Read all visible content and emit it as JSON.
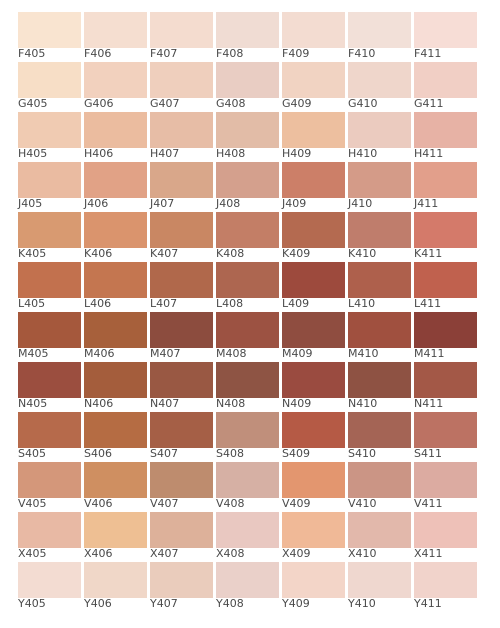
{
  "chart_rows": [
    {
      "row": "F",
      "swatches": [
        {
          "code": "F405",
          "color": "#f9e4d0"
        },
        {
          "code": "F406",
          "color": "#f5ded0"
        },
        {
          "code": "F407",
          "color": "#f4dccf"
        },
        {
          "code": "F408",
          "color": "#f0dcd3"
        },
        {
          "code": "F409",
          "color": "#f3dcd1"
        },
        {
          "code": "F410",
          "color": "#f2e0d8"
        },
        {
          "code": "F411",
          "color": "#f7ddd6"
        }
      ]
    },
    {
      "row": "G",
      "swatches": [
        {
          "code": "G405",
          "color": "#f7dec6"
        },
        {
          "code": "G406",
          "color": "#f2d1be"
        },
        {
          "code": "G407",
          "color": "#efcfbd"
        },
        {
          "code": "G408",
          "color": "#e9cdc3"
        },
        {
          "code": "G409",
          "color": "#f1d3c2"
        },
        {
          "code": "G410",
          "color": "#efd6cb"
        },
        {
          "code": "G411",
          "color": "#f1cfc5"
        }
      ]
    },
    {
      "row": "H",
      "swatches": [
        {
          "code": "H405",
          "color": "#f0cbb2"
        },
        {
          "code": "H406",
          "color": "#ebbc9f"
        },
        {
          "code": "H407",
          "color": "#e7bda6"
        },
        {
          "code": "H408",
          "color": "#e2bca7"
        },
        {
          "code": "H409",
          "color": "#edbf9f"
        },
        {
          "code": "H410",
          "color": "#ebcbbf"
        },
        {
          "code": "H411",
          "color": "#e7b2a5"
        }
      ]
    },
    {
      "row": "J",
      "swatches": [
        {
          "code": "J405",
          "color": "#eabba1"
        },
        {
          "code": "J406",
          "color": "#e1a286"
        },
        {
          "code": "J407",
          "color": "#d9a78a"
        },
        {
          "code": "J408",
          "color": "#d4a08d"
        },
        {
          "code": "J409",
          "color": "#cc7f68"
        },
        {
          "code": "J410",
          "color": "#d49b88"
        },
        {
          "code": "J411",
          "color": "#e29f8b"
        }
      ]
    },
    {
      "row": "K",
      "swatches": [
        {
          "code": "K405",
          "color": "#d89a71"
        },
        {
          "code": "K406",
          "color": "#da946d"
        },
        {
          "code": "K407",
          "color": "#c98763"
        },
        {
          "code": "K408",
          "color": "#c37e66"
        },
        {
          "code": "K409",
          "color": "#b46a50"
        },
        {
          "code": "K410",
          "color": "#bf7d6c"
        },
        {
          "code": "K411",
          "color": "#d47a6a"
        }
      ]
    },
    {
      "row": "L",
      "swatches": [
        {
          "code": "L405",
          "color": "#c2714e"
        },
        {
          "code": "L406",
          "color": "#c47650"
        },
        {
          "code": "L407",
          "color": "#b0684b"
        },
        {
          "code": "L408",
          "color": "#ad6650"
        },
        {
          "code": "L409",
          "color": "#9d4a3d"
        },
        {
          "code": "L410",
          "color": "#ae604c"
        },
        {
          "code": "L411",
          "color": "#c0614e"
        }
      ]
    },
    {
      "row": "M",
      "swatches": [
        {
          "code": "M405",
          "color": "#a5583c"
        },
        {
          "code": "M406",
          "color": "#a7603b"
        },
        {
          "code": "M407",
          "color": "#8c4c3e"
        },
        {
          "code": "M408",
          "color": "#9c5242"
        },
        {
          "code": "M409",
          "color": "#8f4d40"
        },
        {
          "code": "M410",
          "color": "#a0503f"
        },
        {
          "code": "M411",
          "color": "#8b4038"
        }
      ]
    },
    {
      "row": "N",
      "swatches": [
        {
          "code": "N405",
          "color": "#9b4e3f"
        },
        {
          "code": "N406",
          "color": "#a45d3c"
        },
        {
          "code": "N407",
          "color": "#995843"
        },
        {
          "code": "N408",
          "color": "#8e5444"
        },
        {
          "code": "N409",
          "color": "#9a4b40"
        },
        {
          "code": "N410",
          "color": "#8e5243"
        },
        {
          "code": "N411",
          "color": "#a35847"
        }
      ]
    },
    {
      "row": "S",
      "swatches": [
        {
          "code": "S405",
          "color": "#b66a4b"
        },
        {
          "code": "S406",
          "color": "#b56c43"
        },
        {
          "code": "S407",
          "color": "#a55f46"
        },
        {
          "code": "S408",
          "color": "#c08f7b"
        },
        {
          "code": "S409",
          "color": "#b55a45"
        },
        {
          "code": "S410",
          "color": "#a46455"
        },
        {
          "code": "S411",
          "color": "#bc7263"
        }
      ]
    },
    {
      "row": "V",
      "swatches": [
        {
          "code": "V405",
          "color": "#d4977a"
        },
        {
          "code": "V406",
          "color": "#cf8f61"
        },
        {
          "code": "V407",
          "color": "#be8c6e"
        },
        {
          "code": "V408",
          "color": "#d6b0a4"
        },
        {
          "code": "V409",
          "color": "#e3966f"
        },
        {
          "code": "V410",
          "color": "#cb9585"
        },
        {
          "code": "V411",
          "color": "#dcaba1"
        }
      ]
    },
    {
      "row": "X",
      "swatches": [
        {
          "code": "X405",
          "color": "#e8b9a4"
        },
        {
          "code": "X406",
          "color": "#eebf93"
        },
        {
          "code": "X407",
          "color": "#ddb19a"
        },
        {
          "code": "X408",
          "color": "#e9c8c1"
        },
        {
          "code": "X409",
          "color": "#f0b997"
        },
        {
          "code": "X410",
          "color": "#e2b8ab"
        },
        {
          "code": "X411",
          "color": "#eec1b8"
        }
      ]
    },
    {
      "row": "Y",
      "swatches": [
        {
          "code": "Y405",
          "color": "#f3dcd2"
        },
        {
          "code": "Y406",
          "color": "#f0d7c8"
        },
        {
          "code": "Y407",
          "color": "#eaccbc"
        },
        {
          "code": "Y408",
          "color": "#ead0c9"
        },
        {
          "code": "Y409",
          "color": "#f3d5c8"
        },
        {
          "code": "Y410",
          "color": "#efd7cf"
        },
        {
          "code": "Y411",
          "color": "#f1d3cb"
        }
      ]
    }
  ]
}
